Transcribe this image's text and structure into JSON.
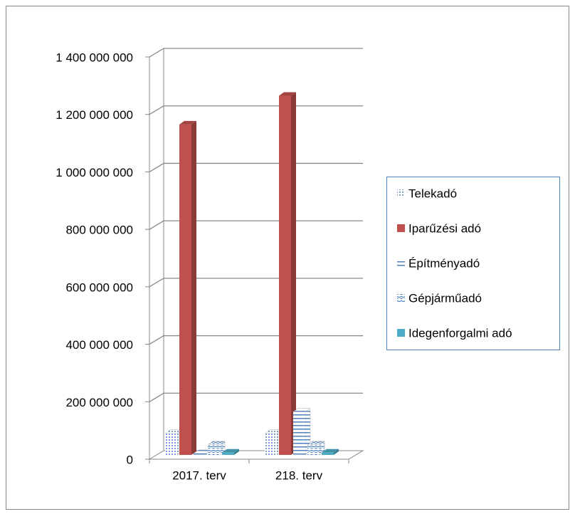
{
  "chart_data": {
    "type": "bar3d",
    "categories": [
      "2017. terv",
      "218. terv"
    ],
    "series": [
      {
        "name": "Telekadó",
        "color": "#4f81bd",
        "pattern": "dots",
        "values": [
          75000000,
          75000000
        ]
      },
      {
        "name": "Iparűzési adó",
        "color": "#c0504d",
        "pattern": "solid",
        "values": [
          1150000000,
          1250000000
        ]
      },
      {
        "name": "Építményadó",
        "color": "#4f81bd",
        "pattern": "hlines",
        "values": [
          5000000,
          150000000
        ]
      },
      {
        "name": "Gépjárműadó",
        "color": "#4f81bd",
        "pattern": "waves",
        "values": [
          35000000,
          35000000
        ]
      },
      {
        "name": "Idegenforgalmi adó",
        "color": "#4bacc6",
        "pattern": "solid",
        "values": [
          8000000,
          8000000
        ]
      }
    ],
    "ylim": [
      0,
      1400000000
    ],
    "yticks": [
      0,
      {
        "value": 200000000,
        "label": "200 000 000"
      },
      {
        "value": 400000000,
        "label": "400 000 000"
      },
      {
        "value": 600000000,
        "label": "600 000 000"
      },
      {
        "value": 800000000,
        "label": "800 000 000"
      },
      {
        "value": 1000000000,
        "label": "1 000 000 000"
      },
      {
        "value": 1200000000,
        "label": "1 200 000 000"
      },
      {
        "value": 1400000000,
        "label": "1 400 000 000"
      }
    ],
    "grid": true,
    "legend": "right"
  }
}
